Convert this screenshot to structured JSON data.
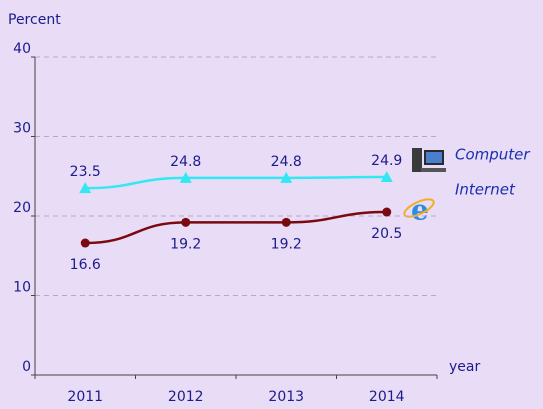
{
  "chart_data": {
    "type": "line",
    "y_label": "Percent",
    "x_label": "year",
    "categories": [
      "2011",
      "2012",
      "2013",
      "2014"
    ],
    "series": [
      {
        "name": "Computer",
        "color": "#33e8f2",
        "marker": "triangle",
        "label_position": "above",
        "values": [
          23.5,
          24.8,
          24.8,
          24.9
        ]
      },
      {
        "name": "Internet",
        "color": "#7a0a10",
        "marker": "circle",
        "label_position": "below",
        "values": [
          16.6,
          19.2,
          19.2,
          20.5
        ]
      }
    ],
    "ylim": [
      0,
      40
    ],
    "yticks": [
      0,
      10,
      20,
      30,
      40
    ],
    "grid": true,
    "legend": "right"
  }
}
